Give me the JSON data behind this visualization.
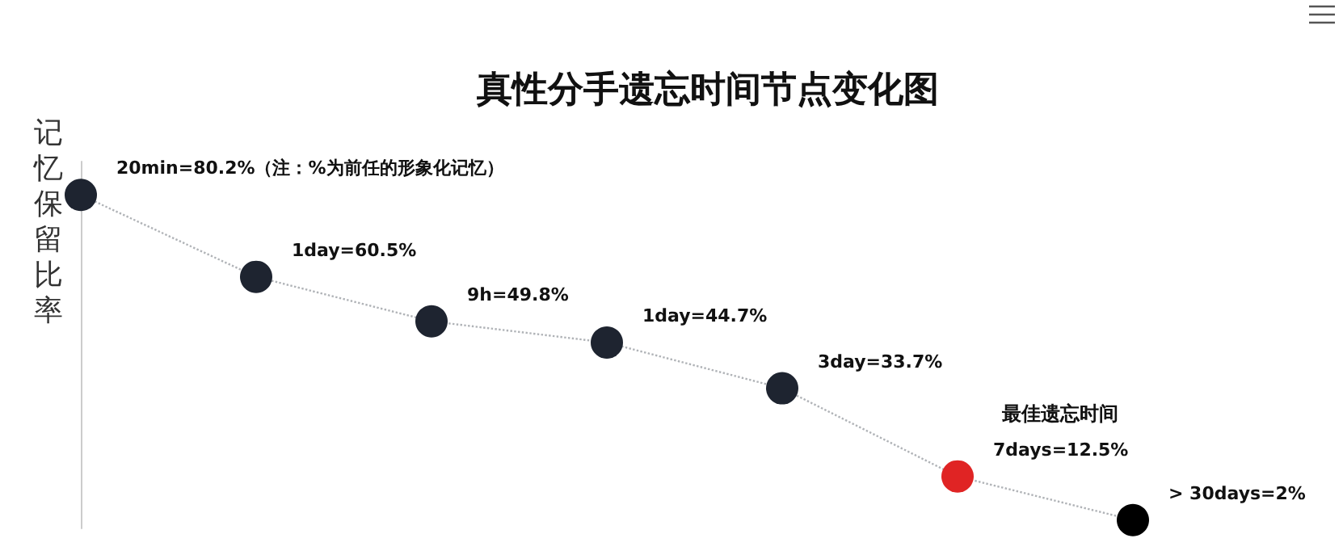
{
  "chart_data": {
    "type": "line",
    "title": "真性分手遗忘时间节点变化图",
    "ylabel": "记忆保留比率",
    "categories": [
      null,
      null,
      null,
      null,
      null,
      null,
      null
    ],
    "series": [
      {
        "color": "#1e2430",
        "colors": [
          "#1e2430",
          "#1e2430",
          "#1e2430",
          "#1e2430",
          "#1e2430",
          "#e02424",
          "#000000"
        ],
        "values": [
          80.2,
          60.5,
          49.8,
          44.7,
          33.7,
          12.5,
          2
        ],
        "value_labels": [
          "20min=80.2%（注：%为前任的形象化记忆）",
          "1day=60.5%",
          "9h=49.8%",
          "1day=44.7%",
          "3day=33.7%",
          "7days=12.5%",
          "> 30days=2%"
        ]
      }
    ],
    "annotations": [
      "最佳遗忘时间"
    ],
    "tick_labels": false,
    "grid": false,
    "marker": "circle",
    "line_style": "dotted"
  }
}
